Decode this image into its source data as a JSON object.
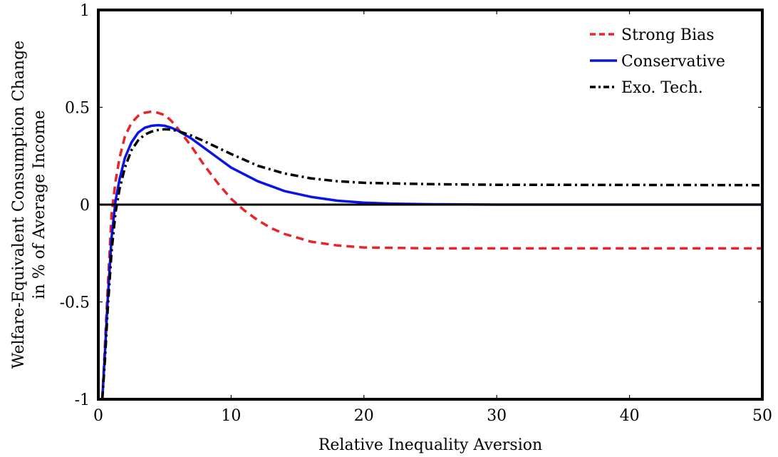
{
  "chart_data": {
    "type": "line",
    "title": "",
    "xlabel": "Relative Inequality Aversion",
    "ylabel_lines": [
      "Welfare-Equivalent Consumption Change",
      "in % of Average Income"
    ],
    "xlim": [
      0,
      50
    ],
    "ylim": [
      -1,
      1
    ],
    "xticks": [
      0,
      10,
      20,
      30,
      40,
      50
    ],
    "xtick_labels": [
      "0",
      "10",
      "20",
      "30",
      "40",
      "50"
    ],
    "yticks": [
      -1,
      -0.5,
      0,
      0.5,
      1
    ],
    "ytick_labels": [
      "-1",
      "-0.5",
      "0",
      "0.5",
      "1"
    ],
    "grid": false,
    "legend_position": "top-right",
    "zero_line": true,
    "series": [
      {
        "name": "Strong Bias",
        "color": "#e8242b",
        "style": "dashed",
        "x": [
          0.3,
          0.5,
          0.7,
          1.0,
          1.3,
          1.6,
          2.0,
          2.5,
          3.0,
          3.5,
          4.0,
          4.3,
          5.0,
          5.5,
          6.0,
          7.0,
          8.0,
          9.0,
          10.0,
          11.0,
          12.0,
          13.0,
          14.0,
          16.0,
          18.0,
          20.0,
          25.0,
          30.0,
          40.0,
          50.0
        ],
        "y": [
          -1.0,
          -0.72,
          -0.44,
          -0.05,
          0.12,
          0.24,
          0.35,
          0.42,
          0.456,
          0.472,
          0.478,
          0.476,
          0.46,
          0.43,
          0.39,
          0.3,
          0.2,
          0.11,
          0.03,
          -0.03,
          -0.08,
          -0.12,
          -0.15,
          -0.19,
          -0.21,
          -0.22,
          -0.225,
          -0.225,
          -0.225,
          -0.225
        ]
      },
      {
        "name": "Conservative",
        "color": "#0a14e6",
        "style": "solid",
        "x": [
          0.3,
          0.5,
          0.7,
          1.0,
          1.3,
          1.6,
          2.0,
          2.5,
          3.0,
          3.5,
          4.0,
          4.5,
          5.0,
          5.5,
          6.0,
          7.0,
          8.0,
          9.0,
          10.0,
          12.0,
          14.0,
          16.0,
          18.0,
          20.0,
          22.0,
          25.0,
          30.0,
          40.0,
          50.0
        ],
        "y": [
          -1.0,
          -0.76,
          -0.5,
          -0.17,
          0.02,
          0.13,
          0.24,
          0.32,
          0.37,
          0.395,
          0.405,
          0.408,
          0.405,
          0.395,
          0.38,
          0.34,
          0.29,
          0.24,
          0.19,
          0.12,
          0.07,
          0.04,
          0.02,
          0.01,
          0.005,
          0.002,
          0.0,
          0.0,
          0.0
        ]
      },
      {
        "name": "Exo. Tech.",
        "color": "#000000",
        "style": "dashdot",
        "x": [
          0.3,
          0.5,
          0.7,
          1.0,
          1.3,
          1.6,
          2.0,
          2.5,
          3.0,
          3.5,
          4.0,
          4.5,
          5.0,
          5.5,
          6.0,
          7.0,
          8.0,
          10.0,
          12.0,
          14.0,
          16.0,
          18.0,
          20.0,
          25.0,
          30.0,
          40.0,
          50.0
        ],
        "y": [
          -1.0,
          -0.8,
          -0.55,
          -0.24,
          -0.04,
          0.08,
          0.19,
          0.28,
          0.33,
          0.36,
          0.375,
          0.383,
          0.387,
          0.385,
          0.378,
          0.355,
          0.325,
          0.26,
          0.2,
          0.16,
          0.135,
          0.12,
          0.112,
          0.105,
          0.102,
          0.101,
          0.1
        ]
      }
    ]
  }
}
